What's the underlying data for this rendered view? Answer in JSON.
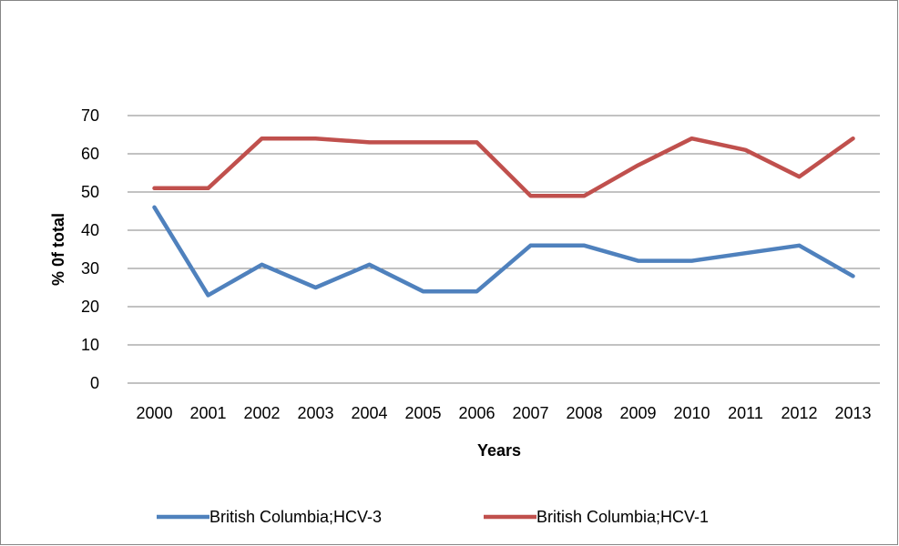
{
  "chart_data": {
    "type": "line",
    "title": "",
    "xlabel": "Years",
    "ylabel": "% 0f total",
    "ylim": [
      0,
      70
    ],
    "yticks": [
      0,
      10,
      20,
      30,
      40,
      50,
      60,
      70
    ],
    "grid": "horizontal",
    "legend_position": "bottom",
    "categories": [
      "2000",
      "2001",
      "2002",
      "2003",
      "2004",
      "2005",
      "2006",
      "2007",
      "2008",
      "2009",
      "2010",
      "2011",
      "2012",
      "2013"
    ],
    "series": [
      {
        "name": "British Columbia;HCV-3",
        "color": "#4F81BD",
        "values": [
          46,
          23,
          31,
          25,
          31,
          24,
          24,
          36,
          36,
          32,
          32,
          34,
          36,
          28
        ]
      },
      {
        "name": "British Columbia;HCV-1",
        "color": "#C0504D",
        "values": [
          51,
          51,
          64,
          64,
          63,
          63,
          63,
          49,
          49,
          57,
          64,
          61,
          54,
          64
        ]
      }
    ]
  }
}
